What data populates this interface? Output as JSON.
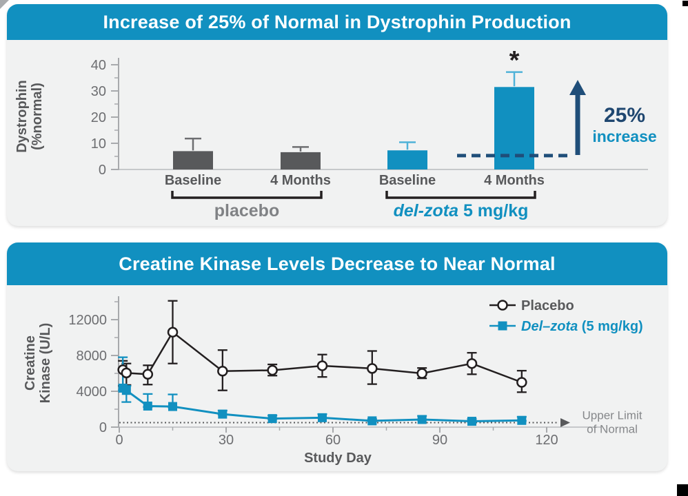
{
  "colors": {
    "teal": "#1190c0",
    "navy": "#1f4e79",
    "panel_bg": "#f1f2f2",
    "header_text": "#ffffff",
    "axis": "#a7a9ac",
    "axis_light": "#c6c8ca",
    "tick_text": "#6d6e71",
    "label_text": "#58595b",
    "black": "#231f20"
  },
  "chart_data": [
    {
      "type": "bar",
      "title": "Increase of 25% of Normal in Dystrophin Production",
      "ylabel": "Dystrophin (%normal)",
      "ylabel_lines": [
        "Dystrophin",
        "(%normal)"
      ],
      "ylim": [
        0,
        40
      ],
      "yticks": [
        0,
        10,
        20,
        30,
        40
      ],
      "yticks_minor": [
        5,
        15,
        25,
        35
      ],
      "grid": false,
      "groups": [
        {
          "label": "placebo",
          "label_parts": [
            {
              "text": "placebo",
              "italic": false
            }
          ],
          "label_color": "#808285",
          "bar_color": "#58595b",
          "error_color": "#6d6e71",
          "bars": [
            {
              "category": "Baseline",
              "value": 7.0,
              "err_high": 11.8
            },
            {
              "category": "4 Months",
              "value": 6.6,
              "err_high": 8.6
            }
          ]
        },
        {
          "label": "del-zota 5 mg/kg",
          "label_parts": [
            {
              "text": "del-zota",
              "italic": true
            },
            {
              "text": " 5 mg/kg",
              "italic": false
            }
          ],
          "label_color": "#1190c0",
          "bar_color": "#1190c0",
          "error_color": "#4fb2d8",
          "bars": [
            {
              "category": "Baseline",
              "value": 7.3,
              "err_high": 10.4
            },
            {
              "category": "4 Months",
              "value": 31.5,
              "err_high": 37.2,
              "significance": "*"
            }
          ]
        }
      ],
      "annotations": {
        "dashed_line_value": 5.3,
        "dashed_line_color": "#1f4e79",
        "arrow_color": "#1f4e79",
        "label_top": "25%",
        "label_top_color": "#1f4770",
        "label_bottom": "increase",
        "label_bottom_color": "#1190c0"
      }
    },
    {
      "type": "line",
      "title": "Creatine Kinase Levels Decrease to Near Normal",
      "xlabel": "Study Day",
      "ylabel": "Creatine Kinase (U/L)",
      "ylabel_lines": [
        "Creatine",
        "Kinase (U/L)"
      ],
      "xlim": [
        0,
        135
      ],
      "ylim": [
        0,
        14500
      ],
      "xticks": [
        0,
        30,
        60,
        90,
        120
      ],
      "xticks_minor": [
        15,
        45,
        75,
        105
      ],
      "yticks": [
        0,
        4000,
        8000,
        12000
      ],
      "yticks_minor": [
        2000,
        6000,
        10000,
        14000
      ],
      "grid": false,
      "legend_position": "top-right",
      "reference_line": {
        "value": 500,
        "label": "Upper Limit of Normal",
        "label_lines": [
          "Upper Limit",
          "of Normal"
        ],
        "color": "#58595b",
        "label_color": "#85878a"
      },
      "series": [
        {
          "name": "Placebo",
          "legend_parts": [
            {
              "text": "Placebo",
              "italic": false
            }
          ],
          "label_color": "#58595b",
          "color": "#231f20",
          "marker": "open-circle",
          "x": [
            1,
            2,
            8,
            15,
            29,
            43,
            57,
            71,
            85,
            99,
            113
          ],
          "y": [
            6400,
            6050,
            5900,
            10600,
            6250,
            6350,
            6850,
            6550,
            6000,
            7100,
            5000
          ],
          "err_low": [
            4600,
            4700,
            4750,
            7100,
            4100,
            5750,
            5600,
            4800,
            5450,
            5900,
            3900
          ],
          "err_high": [
            7400,
            7100,
            6900,
            14100,
            8600,
            7000,
            8100,
            8500,
            6600,
            8300,
            6300
          ]
        },
        {
          "name": "Del–zota (5 mg/kg)",
          "legend_parts": [
            {
              "text": "Del–zota",
              "italic": true
            },
            {
              "text": " (5 mg/kg)",
              "italic": false
            }
          ],
          "label_color": "#1190c0",
          "color": "#1190c0",
          "marker": "filled-square",
          "x": [
            1,
            2,
            8,
            15,
            29,
            43,
            57,
            71,
            85,
            99,
            113
          ],
          "y": [
            4350,
            4100,
            2350,
            2300,
            1450,
            950,
            1050,
            700,
            850,
            650,
            750
          ],
          "err_low": [
            4100,
            2800,
            2250,
            2200,
            1400,
            900,
            1000,
            650,
            800,
            600,
            700
          ],
          "err_high": [
            7800,
            4600,
            3700,
            3650,
            1850,
            1300,
            1450,
            900,
            1250,
            900,
            1150
          ]
        }
      ]
    }
  ]
}
